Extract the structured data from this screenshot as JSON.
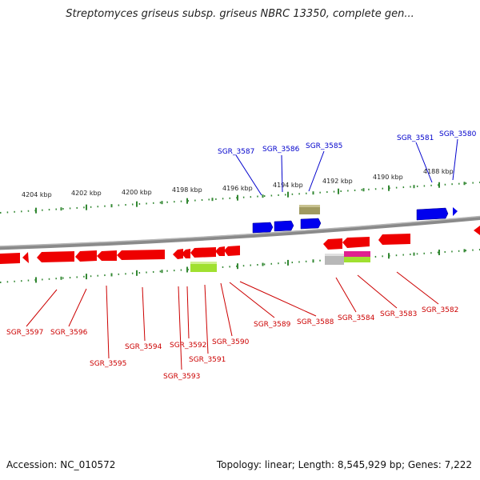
{
  "title": "Streptomyces griseus subsp. griseus NBRC 13350, complete gen...",
  "footer": {
    "accession": "Accession: NC_010572",
    "summary": "Topology: linear; Length: 8,545,929 bp; Genes: 7,222"
  },
  "colors": {
    "forward_label": "#0000cc",
    "reverse_label": "#cc0000",
    "forward_gene": "#0000ee",
    "reverse_gene": "#ee0000",
    "tick": "#338833",
    "backbone": "#7a7a7a"
  },
  "scale_labels": [
    "4204 kbp",
    "4202 kbp",
    "4200 kbp",
    "4198 kbp",
    "4196 kbp",
    "4194 kbp",
    "4192 kbp",
    "4190 kbp",
    "4188 kbp"
  ],
  "forward_labels": [
    "SGR_3587",
    "SGR_3586",
    "SGR_3585",
    "SGR_3581",
    "SGR_3580"
  ],
  "reverse_labels": [
    "SGR_3597",
    "SGR_3596",
    "SGR_3595",
    "SGR_3594",
    "SGR_3593",
    "SGR_3592",
    "SGR_3591",
    "SGR_3590",
    "SGR_3589",
    "SGR_3588",
    "SGR_3584",
    "SGR_3583",
    "SGR_3582"
  ]
}
